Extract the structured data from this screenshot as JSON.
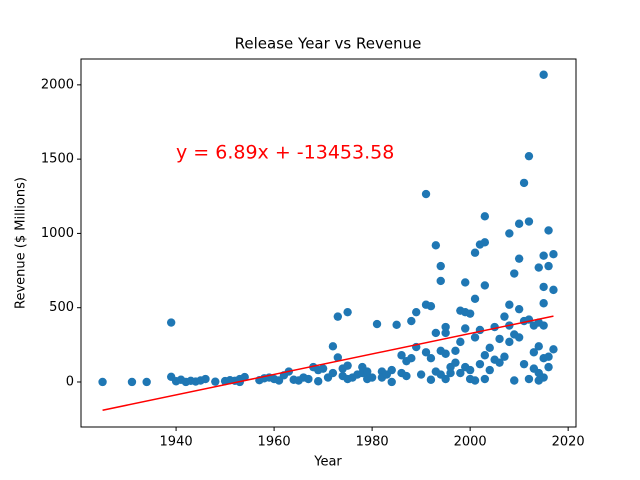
{
  "chart_data": {
    "type": "scatter",
    "title": "Release Year vs Revenue",
    "xlabel": "Year",
    "ylabel": "Revenue ($ Millions)",
    "annotation": "y = 6.89x + -13453.58",
    "xlim": [
      1920.6,
      2021.6
    ],
    "ylim": [
      -303,
      2174
    ],
    "xticks": [
      1940,
      1960,
      1980,
      2000,
      2020
    ],
    "yticks": [
      0,
      500,
      1000,
      1500,
      2000
    ],
    "series": [
      {
        "color": "#1f77b4",
        "x": [
          1925,
          1931,
          1934,
          1939,
          1939,
          1940,
          1941,
          1942,
          1943,
          1944,
          1945,
          1946,
          1948,
          1950,
          1951,
          1952,
          1953,
          1954,
          1953,
          1957,
          1958,
          1959,
          1960,
          1961,
          1962,
          1963,
          1964,
          1965,
          1966,
          1967,
          1968,
          1969,
          1969,
          1970,
          1971,
          1972,
          1972,
          1973,
          1973,
          1974,
          1974,
          1975,
          1975,
          1975,
          1976,
          1977,
          1978,
          1978,
          1979,
          1979,
          1980,
          1981,
          1982,
          1982,
          1983,
          1984,
          1984,
          1985,
          1986,
          1986,
          1987,
          1987,
          1988,
          1988,
          1989,
          1989,
          1990,
          1991,
          1991,
          1991,
          1992,
          1992,
          1992,
          1993,
          1993,
          1993,
          1994,
          1994,
          1994,
          1994,
          1995,
          1995,
          1995,
          1995,
          1996,
          1996,
          1997,
          1997,
          1998,
          1998,
          1998,
          1999,
          1999,
          1999,
          1999,
          2000,
          2000,
          2000,
          2001,
          2001,
          2001,
          2001,
          2002,
          2002,
          2002,
          2003,
          2003,
          2003,
          2003,
          2003,
          2004,
          2004,
          2005,
          2005,
          2006,
          2006,
          2007,
          2007,
          2008,
          2008,
          2008,
          2008,
          2009,
          2009,
          2009,
          2010,
          2010,
          2010,
          2010,
          2011,
          2011,
          2011,
          2012,
          2012,
          2012,
          2013,
          2013,
          2014,
          2014,
          2014,
          2014,
          2015,
          2015,
          2015,
          2015,
          2015,
          2015,
          2016,
          2016,
          2016,
          2016,
          2017,
          2017,
          2017,
          2014,
          2015,
          2013,
          2012
        ],
        "values": [
          0,
          0,
          0,
          400,
          35,
          5,
          15,
          0,
          8,
          3,
          10,
          20,
          2,
          6,
          12,
          8,
          20,
          33,
          0,
          12,
          25,
          30,
          20,
          10,
          45,
          70,
          15,
          10,
          30,
          20,
          100,
          80,
          5,
          90,
          30,
          240,
          60,
          440,
          165,
          90,
          40,
          470,
          110,
          20,
          30,
          50,
          60,
          100,
          20,
          70,
          30,
          390,
          70,
          30,
          50,
          80,
          0,
          385,
          180,
          60,
          40,
          140,
          410,
          160,
          470,
          235,
          50,
          1265,
          520,
          200,
          510,
          160,
          15,
          920,
          330,
          70,
          780,
          680,
          210,
          50,
          370,
          330,
          190,
          20,
          100,
          60,
          210,
          130,
          480,
          270,
          60,
          670,
          470,
          360,
          100,
          460,
          80,
          20,
          870,
          560,
          300,
          10,
          925,
          350,
          120,
          1115,
          940,
          650,
          180,
          20,
          230,
          80,
          370,
          150,
          290,
          130,
          440,
          170,
          1000,
          520,
          380,
          270,
          730,
          320,
          10,
          1065,
          830,
          490,
          300,
          1340,
          410,
          120,
          1520,
          1080,
          420,
          380,
          200,
          770,
          400,
          240,
          60,
          2068,
          850,
          640,
          530,
          380,
          160,
          1020,
          780,
          170,
          100,
          860,
          620,
          220,
          10,
          30,
          90,
          20
        ]
      },
      {
        "type": "line",
        "color": "#ff0000",
        "x": [
          1925,
          2017
        ],
        "values": [
          -190.3,
          443.5
        ]
      }
    ]
  }
}
